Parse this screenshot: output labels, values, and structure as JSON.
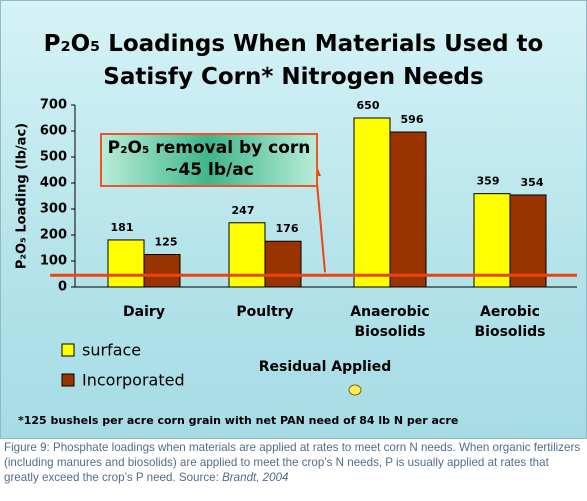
{
  "chart_data": {
    "type": "bar",
    "title": "P₂O₅ Loadings When Materials Used to Satisfy Corn* Nitrogen Needs",
    "y_label": "P₂O₅ Loading (lb/ac)",
    "x_label": "Residual Applied",
    "categories": [
      "Dairy",
      "Poultry",
      "Anaerobic Biosolids",
      "Aerobic Biosolids"
    ],
    "series": [
      {
        "name": "surface",
        "color": "#ffff00",
        "values": [
          181,
          247,
          650,
          359
        ]
      },
      {
        "name": "Incorporated",
        "color": "#993300",
        "values": [
          125,
          176,
          596,
          354
        ]
      }
    ],
    "ylim": [
      0,
      700
    ],
    "yticks": [
      0,
      100,
      200,
      300,
      400,
      500,
      600,
      700
    ],
    "grid": false,
    "reference_line": {
      "value": 45,
      "color": "#ee4411",
      "annotation": "P₂O₅ removal by corn ~45 lb/ac"
    },
    "footnote": "*125 bushels per acre corn grain with net PAN need of 84 lb N per acre"
  },
  "caption": {
    "text": "Figure 9:  Phosphate loadings when materials are applied at rates to meet corn N needs.  When organic fertilizers (including manures and biosolids) are applied to meet the crop’s N needs, P is usually applied at rates that greatly exceed the crop’s P need. Source:",
    "source": "Brandt, 2004"
  }
}
